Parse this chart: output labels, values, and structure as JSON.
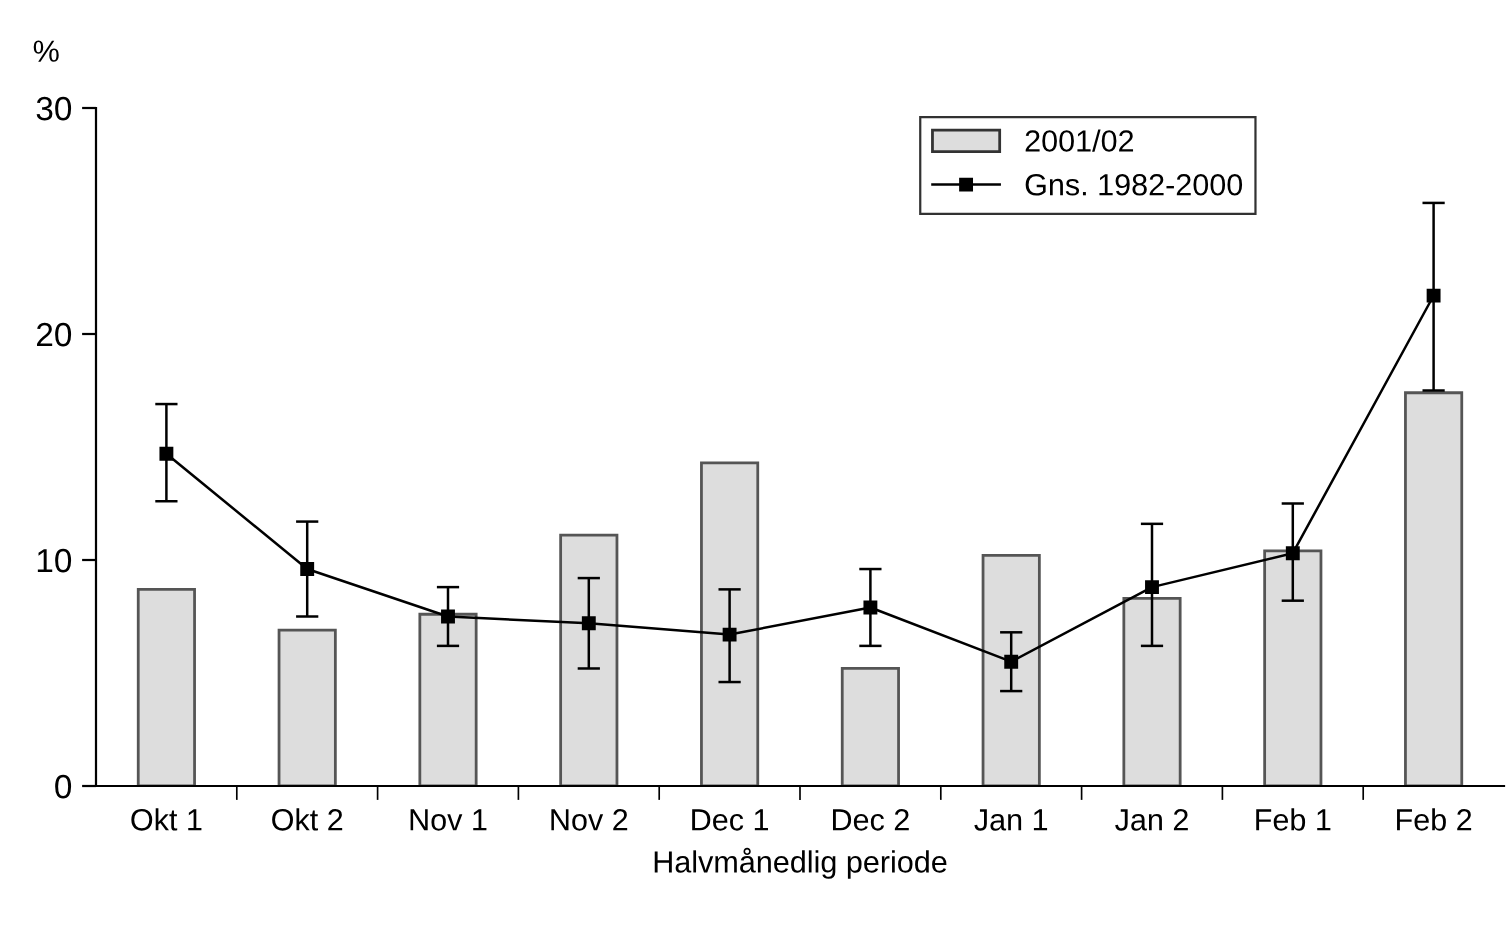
{
  "chart_data": {
    "type": "bar",
    "xlabel": "Halvmånedlig periode",
    "ylabel": "%",
    "categories": [
      "Okt 1",
      "Okt 2",
      "Nov 1",
      "Nov 2",
      "Dec 1",
      "Dec 2",
      "Jan 1",
      "Jan 2",
      "Feb 1",
      "Feb 2"
    ],
    "series": [
      {
        "name": "2001/02",
        "color": "#dddddd",
        "values": [
          8.7,
          6.9,
          7.6,
          11.1,
          14.3,
          5.2,
          10.2,
          8.3,
          10.4,
          17.4
        ]
      },
      {
        "name": "Gns. 1982-2000",
        "type": "line",
        "color": "#000000",
        "marker": "square",
        "line_style": "solid",
        "values": [
          14.7,
          9.6,
          7.5,
          7.2,
          6.7,
          7.9,
          5.5,
          8.8,
          10.3,
          21.7
        ],
        "errors": [
          [
            12.6,
            16.9
          ],
          [
            7.5,
            11.7
          ],
          [
            6.2,
            8.8
          ],
          [
            5.2,
            9.2
          ],
          [
            4.6,
            8.7
          ],
          [
            6.2,
            9.6
          ],
          [
            4.2,
            6.8
          ],
          [
            6.2,
            11.6
          ],
          [
            8.2,
            12.5
          ],
          [
            17.5,
            25.8
          ]
        ]
      }
    ],
    "ylim": [
      0,
      30
    ],
    "yticks": [
      0,
      10,
      20,
      30
    ],
    "grid": false,
    "legend": "top right"
  }
}
